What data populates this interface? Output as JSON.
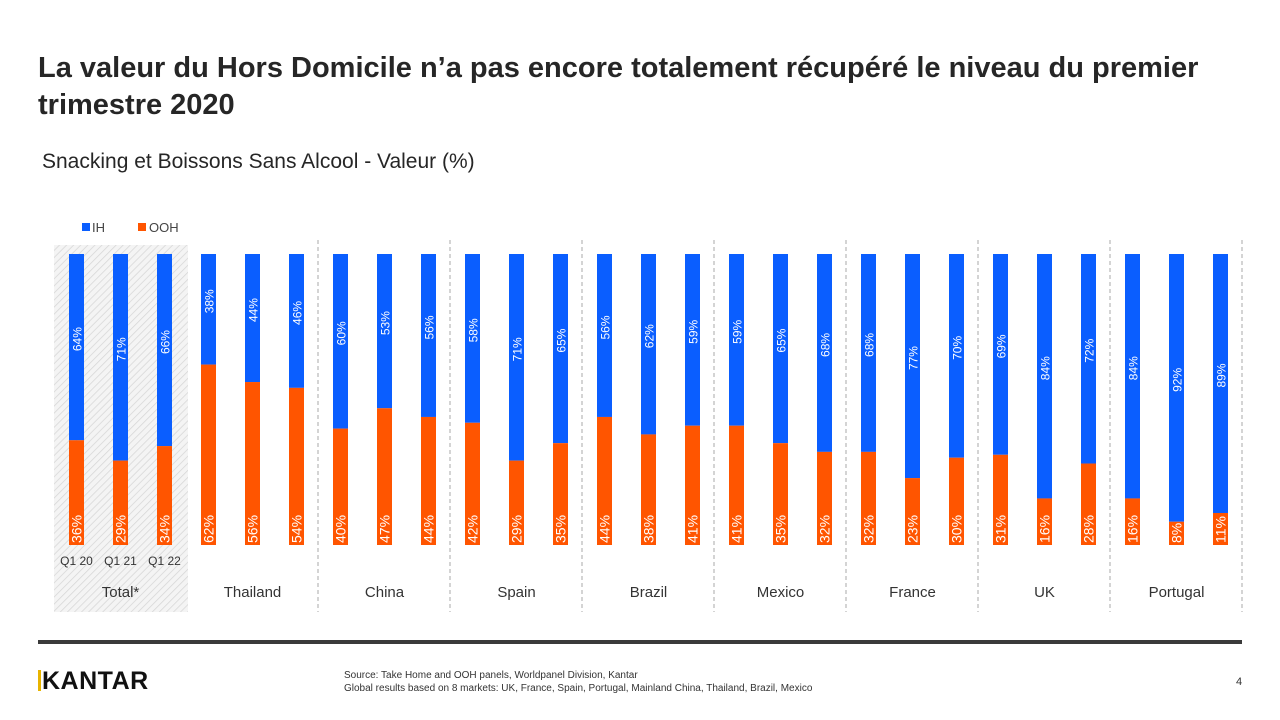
{
  "title": "La valeur du Hors Domicile n’a pas encore totalement récupéré le niveau du premier trimestre 2020",
  "subtitle": "Snacking et Boissons Sans Alcool - Valeur (%)",
  "footer": {
    "logo": "KANTAR",
    "source_line1": "Source: Take Home and OOH  panels, Worldpanel Division,  Kantar",
    "source_line2": "Global results based on 8 markets: UK,  France, Spain, Portugal,  Mainland  China,  Thailand,  Brazil, Mexico",
    "page_number": "4"
  },
  "chart_data": {
    "type": "bar",
    "stacked": true,
    "orientation": "vertical",
    "legend": {
      "placement": "top-left",
      "entries": [
        "IH",
        "OOH"
      ]
    },
    "colors": {
      "IH": "#0A5EFF",
      "OOH": "#FF5500"
    },
    "period_labels": [
      "Q1 20",
      "Q1 21",
      "Q1 22"
    ],
    "groups": [
      {
        "name": "Total*",
        "highlighted": true,
        "IH": [
          64,
          71,
          66
        ],
        "OOH": [
          36,
          29,
          34
        ]
      },
      {
        "name": "Thailand",
        "IH": [
          38,
          44,
          46
        ],
        "OOH": [
          62,
          56,
          54
        ]
      },
      {
        "name": "China",
        "IH": [
          60,
          53,
          56
        ],
        "OOH": [
          40,
          47,
          44
        ]
      },
      {
        "name": "Spain",
        "IH": [
          58,
          71,
          65
        ],
        "OOH": [
          42,
          29,
          35
        ]
      },
      {
        "name": "Brazil",
        "IH": [
          56,
          62,
          59
        ],
        "OOH": [
          44,
          38,
          41
        ]
      },
      {
        "name": "Mexico",
        "IH": [
          59,
          65,
          68
        ],
        "OOH": [
          41,
          35,
          32
        ]
      },
      {
        "name": "France",
        "IH": [
          68,
          77,
          70
        ],
        "OOH": [
          32,
          23,
          30
        ]
      },
      {
        "name": "UK",
        "IH": [
          69,
          84,
          72
        ],
        "OOH": [
          31,
          16,
          28
        ]
      },
      {
        "name": "Portugal",
        "IH": [
          84,
          92,
          89
        ],
        "OOH": [
          16,
          8,
          11
        ]
      }
    ],
    "ylim": [
      0,
      100
    ],
    "unit": "%",
    "grid": false
  }
}
